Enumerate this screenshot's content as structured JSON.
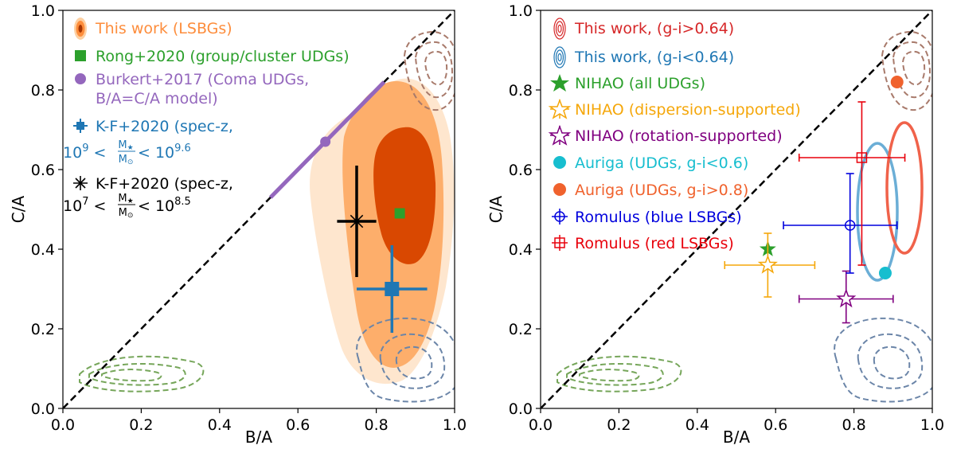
{
  "chart_data": [
    {
      "type": "scatter",
      "xlabel": "B/A",
      "ylabel": "C/A",
      "xlim": [
        0.0,
        1.0
      ],
      "ylim": [
        0.0,
        1.0
      ],
      "xticks": [
        "0.0",
        "0.2",
        "0.4",
        "0.6",
        "0.8",
        "1.0"
      ],
      "yticks": [
        "0.0",
        "0.2",
        "0.4",
        "0.6",
        "0.8",
        "1.0"
      ],
      "legend_position": "upper-left",
      "legend": [
        {
          "text": "This work (LSBGs)",
          "color": "#fd8d3c"
        },
        {
          "text": "Rong+2020 (group/cluster UDGs)",
          "color": "#2ca02c"
        },
        {
          "text": "Burkert+2017 (Coma UDGs,",
          "color": "#9467bd"
        },
        {
          "text": "B/A=C/A model)",
          "color": "#9467bd"
        },
        {
          "text": "K-F+2020 (spec-z,",
          "color": "#1f77b4"
        },
        {
          "text": "K-F+2020 (spec-z,",
          "color": "#000000"
        }
      ],
      "legend_math": [
        {
          "prefix": "10",
          "exp_lo": "9",
          "exp_hi": "9.6",
          "num": "M",
          "num_sub": "★",
          "den": "M",
          "den_sub": "⊙",
          "color": "#1f77b4"
        },
        {
          "prefix": "10",
          "exp_lo": "7",
          "exp_hi": "8.5",
          "num": "M",
          "num_sub": "★",
          "den": "M",
          "den_sub": "⊙",
          "color": "#000000"
        }
      ],
      "series": [
        {
          "name": "Rong+2020 (group/cluster UDGs)",
          "marker": "square",
          "color": "#2ca02c",
          "points": [
            {
              "x": 0.86,
              "y": 0.49
            }
          ]
        },
        {
          "name": "Burkert+2017 (Coma UDGs, B/A=C/A model)",
          "marker": "line+circle",
          "color": "#9467bd",
          "line": [
            [
              0.53,
              0.53
            ],
            [
              0.82,
              0.82
            ]
          ],
          "points": [
            {
              "x": 0.67,
              "y": 0.67
            }
          ]
        },
        {
          "name": "K-F+2020 (spec-z, 10^9<M*/Msun<10^9.6)",
          "marker": "square-errorbar",
          "color": "#1f77b4",
          "points": [
            {
              "x": 0.84,
              "y": 0.3,
              "xerr": [
                0.09,
                0.09
              ],
              "yerr": [
                0.11,
                0.11
              ]
            }
          ]
        },
        {
          "name": "K-F+2020 (spec-z, 10^7<M*/Msun<10^8.5)",
          "marker": "star-errorbar",
          "color": "#000000",
          "points": [
            {
              "x": 0.75,
              "y": 0.47,
              "xerr": [
                0.05,
                0.05
              ],
              "yerr": [
                0.14,
                0.14
              ]
            }
          ]
        }
      ],
      "reference_line": {
        "from": [
          0.0,
          0.0
        ],
        "to": [
          1.0,
          1.0
        ],
        "style": "dashed"
      }
    },
    {
      "type": "scatter",
      "xlabel": "B/A",
      "ylabel": "C/A",
      "xlim": [
        0.0,
        1.0
      ],
      "ylim": [
        0.0,
        1.0
      ],
      "xticks": [
        "0.0",
        "0.2",
        "0.4",
        "0.6",
        "0.8",
        "1.0"
      ],
      "yticks": [
        "0.0",
        "0.2",
        "0.4",
        "0.6",
        "0.8",
        "1.0"
      ],
      "legend_position": "upper-left",
      "legend": [
        {
          "text": "This work, (g-i>0.64)",
          "color": "#d62728"
        },
        {
          "text": "This work, (g-i<0.64)",
          "color": "#1f77b4"
        },
        {
          "text": "NIHAO (all UDGs)",
          "color": "#2ca02c"
        },
        {
          "text": "NIHAO (dispersion-supported)",
          "color": "#f5a70a"
        },
        {
          "text": "NIHAO (rotation-supported)",
          "color": "#800080"
        },
        {
          "text": "Auriga (UDGs, g-i<0.6)",
          "color": "#17becf"
        },
        {
          "text": "Auriga (UDGs, g-i>0.8)",
          "color": "#f0622d"
        },
        {
          "text": "Romulus (blue LSBGs)",
          "color": "#0000dd"
        },
        {
          "text": "Romulus (red LSBGs)",
          "color": "#e8000b"
        }
      ],
      "series": [
        {
          "name": "This work, (g-i>0.64)",
          "marker": "contour",
          "color": "#f0624a",
          "center": {
            "x": 0.91,
            "y": 0.46
          }
        },
        {
          "name": "This work, (g-i<0.64)",
          "marker": "contour",
          "color": "#6baed6",
          "center": {
            "x": 0.85,
            "y": 0.47
          }
        },
        {
          "name": "NIHAO (all UDGs)",
          "marker": "star",
          "color": "#2ca02c",
          "points": [
            {
              "x": 0.58,
              "y": 0.4
            }
          ]
        },
        {
          "name": "NIHAO (dispersion-supported)",
          "marker": "open-star-errorbar",
          "color": "#f5a70a",
          "points": [
            {
              "x": 0.58,
              "y": 0.36,
              "xerr": [
                0.11,
                0.12
              ],
              "yerr": [
                0.08,
                0.08
              ]
            }
          ]
        },
        {
          "name": "NIHAO (rotation-supported)",
          "marker": "open-star-errorbar",
          "color": "#800080",
          "points": [
            {
              "x": 0.78,
              "y": 0.275,
              "xerr": [
                0.12,
                0.12
              ],
              "yerr": [
                0.06,
                0.07
              ]
            }
          ]
        },
        {
          "name": "Auriga (UDGs, g-i<0.6)",
          "marker": "circle",
          "color": "#17becf",
          "points": [
            {
              "x": 0.88,
              "y": 0.34
            }
          ]
        },
        {
          "name": "Auriga (UDGs, g-i>0.8)",
          "marker": "circle",
          "color": "#f0622d",
          "points": [
            {
              "x": 0.91,
              "y": 0.82
            }
          ]
        },
        {
          "name": "Romulus (blue LSBGs)",
          "marker": "open-circle-errorbar",
          "color": "#0000dd",
          "points": [
            {
              "x": 0.79,
              "y": 0.46,
              "xerr": [
                0.17,
                0.12
              ],
              "yerr": [
                0.12,
                0.13
              ]
            }
          ]
        },
        {
          "name": "Romulus (red LSBGs)",
          "marker": "open-square-errorbar",
          "color": "#e8000b",
          "points": [
            {
              "x": 0.82,
              "y": 0.63,
              "xerr": [
                0.16,
                0.11
              ],
              "yerr": [
                0.27,
                0.14
              ]
            }
          ]
        }
      ],
      "reference_line": {
        "from": [
          0.0,
          0.0
        ],
        "to": [
          1.0,
          1.0
        ],
        "style": "dashed"
      }
    }
  ]
}
